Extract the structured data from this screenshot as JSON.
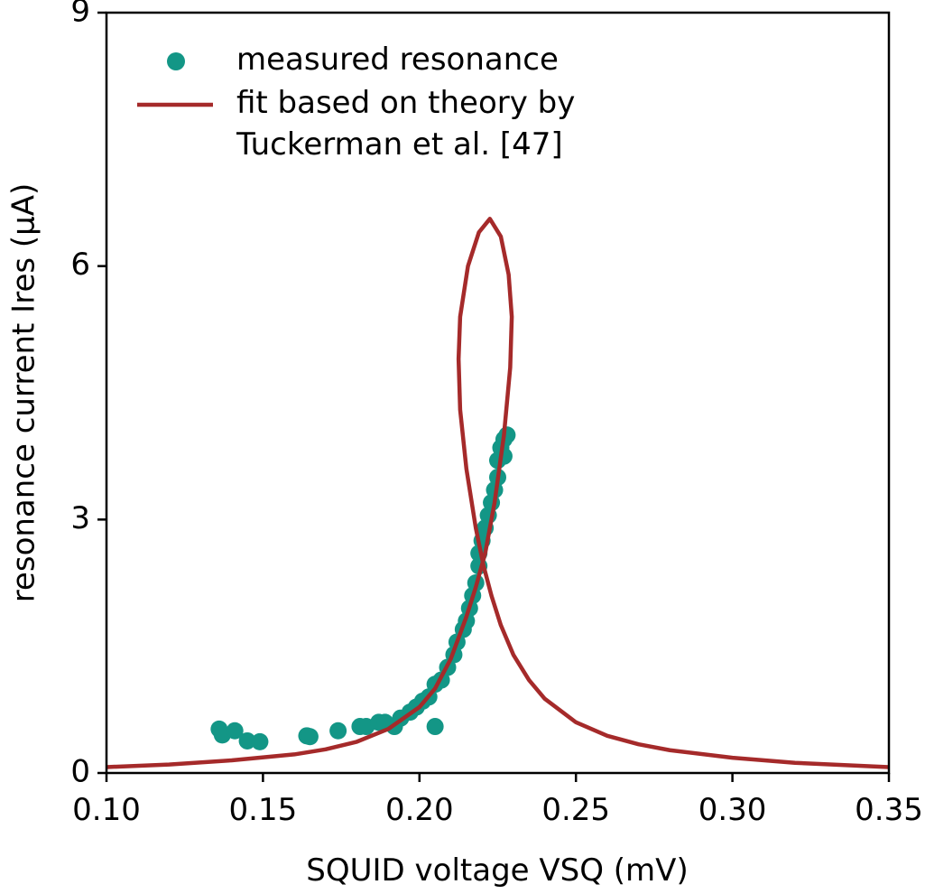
{
  "chart_data": {
    "type": "scatter",
    "xlabel": "SQUID voltage VSQ (mV)",
    "ylabel": "resonance current Ires (μA)",
    "xlim": [
      0.1,
      0.35
    ],
    "xticks": [
      {
        "value": 0.1,
        "label": "0.10"
      },
      0.15,
      {
        "value": 0.2,
        "label": "0.20"
      },
      0.25,
      {
        "value": 0.3,
        "label": "0.30"
      },
      0.35
    ],
    "ylim": [
      0,
      9
    ],
    "yticks": [
      0,
      3,
      6,
      9
    ],
    "grid": false,
    "legend": "upper left",
    "series": [
      {
        "name": "measured resonance",
        "type": "scatter",
        "color": "#139686",
        "x": [
          0.136,
          0.137,
          0.141,
          0.145,
          0.149,
          0.164,
          0.165,
          0.174,
          0.181,
          0.183,
          0.187,
          0.189,
          0.192,
          0.194,
          0.197,
          0.199,
          0.201,
          0.203,
          0.205,
          0.205,
          0.207,
          0.209,
          0.211,
          0.212,
          0.214,
          0.215,
          0.216,
          0.217,
          0.218,
          0.219,
          0.219,
          0.22,
          0.221,
          0.222,
          0.223,
          0.224,
          0.225,
          0.225,
          0.226,
          0.227,
          0.228,
          0.227
        ],
        "values": [
          0.52,
          0.45,
          0.5,
          0.38,
          0.37,
          0.44,
          0.43,
          0.5,
          0.55,
          0.55,
          0.6,
          0.6,
          0.55,
          0.65,
          0.72,
          0.78,
          0.85,
          0.9,
          0.55,
          1.05,
          1.1,
          1.25,
          1.4,
          1.55,
          1.7,
          1.8,
          1.95,
          2.1,
          2.25,
          2.45,
          2.6,
          2.75,
          2.9,
          3.05,
          3.2,
          3.35,
          3.5,
          3.7,
          3.85,
          3.95,
          4.0,
          3.75
        ]
      },
      {
        "name": "fit based on theory by Tuckerman et al. [47]",
        "type": "line",
        "color": "#a52a2a",
        "x": [
          0.1,
          0.12,
          0.14,
          0.16,
          0.17,
          0.18,
          0.19,
          0.2,
          0.205,
          0.21,
          0.215,
          0.218,
          0.221,
          0.224,
          0.227,
          0.229,
          0.2295,
          0.2285,
          0.226,
          0.2225,
          0.219,
          0.2155,
          0.213,
          0.2125,
          0.213,
          0.215,
          0.218,
          0.2205,
          0.223,
          0.226,
          0.23,
          0.235,
          0.24,
          0.25,
          0.26,
          0.27,
          0.28,
          0.3,
          0.32,
          0.35
        ],
        "values": [
          0.07,
          0.1,
          0.15,
          0.22,
          0.28,
          0.37,
          0.52,
          0.78,
          1.0,
          1.35,
          1.85,
          2.2,
          2.6,
          3.2,
          4.0,
          4.8,
          5.4,
          5.9,
          6.35,
          6.56,
          6.4,
          6.0,
          5.4,
          4.9,
          4.3,
          3.6,
          2.9,
          2.45,
          2.1,
          1.75,
          1.4,
          1.1,
          0.88,
          0.6,
          0.44,
          0.34,
          0.27,
          0.18,
          0.12,
          0.07
        ]
      }
    ]
  }
}
